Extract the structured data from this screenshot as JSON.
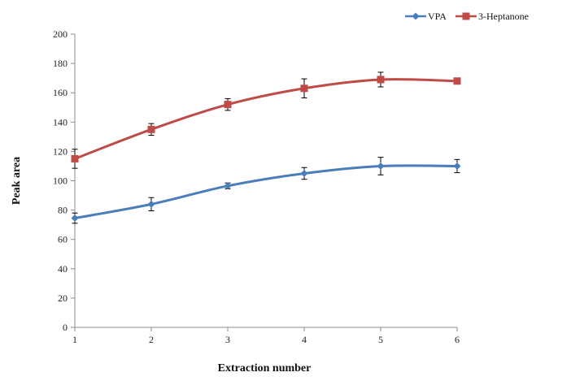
{
  "chart_data": {
    "type": "line",
    "title": "",
    "xlabel": "Extraction number",
    "ylabel": "Peak area",
    "x": [
      1,
      2,
      3,
      4,
      5,
      6
    ],
    "xlim": [
      1,
      6
    ],
    "ylim": [
      0,
      200
    ],
    "yticks": [
      0,
      20,
      40,
      60,
      80,
      100,
      120,
      140,
      160,
      180,
      200
    ],
    "xticks": [
      1,
      2,
      3,
      4,
      5,
      6
    ],
    "grid": false,
    "legend_position": "top-right",
    "series": [
      {
        "name": "VPA",
        "marker": "diamond",
        "color": "#4a7ebb",
        "values": [
          74.5,
          84,
          96.5,
          105,
          110,
          110
        ],
        "errors": [
          3.5,
          4.5,
          2,
          4,
          6,
          4.5
        ]
      },
      {
        "name": "3-Heptanone",
        "marker": "square",
        "color": "#be4b48",
        "values": [
          115,
          135,
          152,
          163,
          169,
          168
        ],
        "errors": [
          6.5,
          4,
          4,
          6.5,
          5,
          2
        ]
      }
    ]
  }
}
